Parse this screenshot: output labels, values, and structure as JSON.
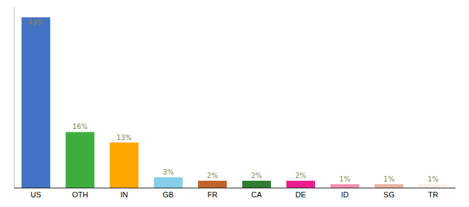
{
  "chart_data": {
    "type": "bar",
    "categories": [
      "US",
      "OTH",
      "IN",
      "GB",
      "FR",
      "CA",
      "DE",
      "ID",
      "SG",
      "TR"
    ],
    "values": [
      49,
      16,
      13,
      3,
      2,
      2,
      2,
      1,
      1,
      1
    ],
    "value_labels": [
      "49%",
      "16%",
      "13%",
      "3%",
      "2%",
      "2%",
      "2%",
      "1%",
      "1%",
      "1%"
    ],
    "colors": [
      "#4472c4",
      "#3dae3d",
      "#ffa500",
      "#87ceeb",
      "#c0622a",
      "#2e7d32",
      "#e91e8c",
      "#f48fb1",
      "#e8b4a0",
      "#f5f0e8"
    ],
    "ylim": [
      0,
      52
    ],
    "yticks": [],
    "grid": false,
    "data_labels": true,
    "tick_labels": "x"
  }
}
